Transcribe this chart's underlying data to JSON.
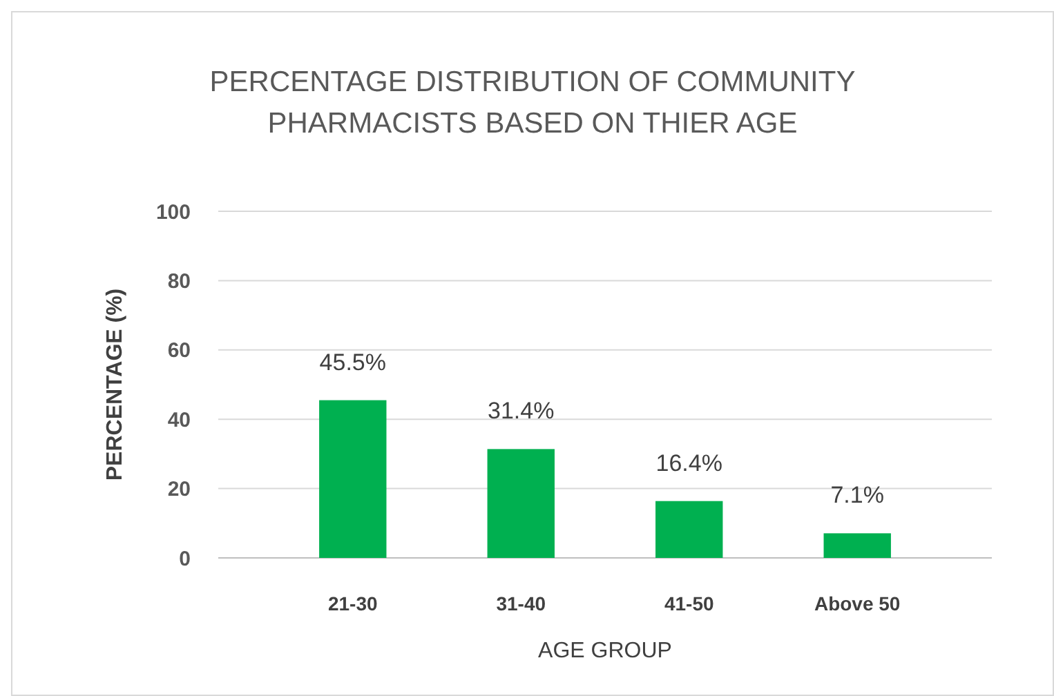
{
  "chart_data": {
    "type": "bar",
    "title": "PERCENTAGE DISTRIBUTION OF COMMUNITY PHARMACISTS BASED ON THIER AGE",
    "xlabel": "AGE GROUP",
    "ylabel": "PERCENTAGE (%)",
    "categories": [
      "21-30",
      "31-40",
      "41-50",
      "Above 50"
    ],
    "values": [
      45.5,
      31.4,
      16.4,
      7.1
    ],
    "value_labels": [
      "45.5%",
      "31.4%",
      "16.4%",
      "7.1%"
    ],
    "color": "#00b050",
    "ylim": [
      0,
      100
    ],
    "yticks": [
      0,
      20,
      40,
      60,
      80,
      100
    ],
    "grid": "y"
  }
}
